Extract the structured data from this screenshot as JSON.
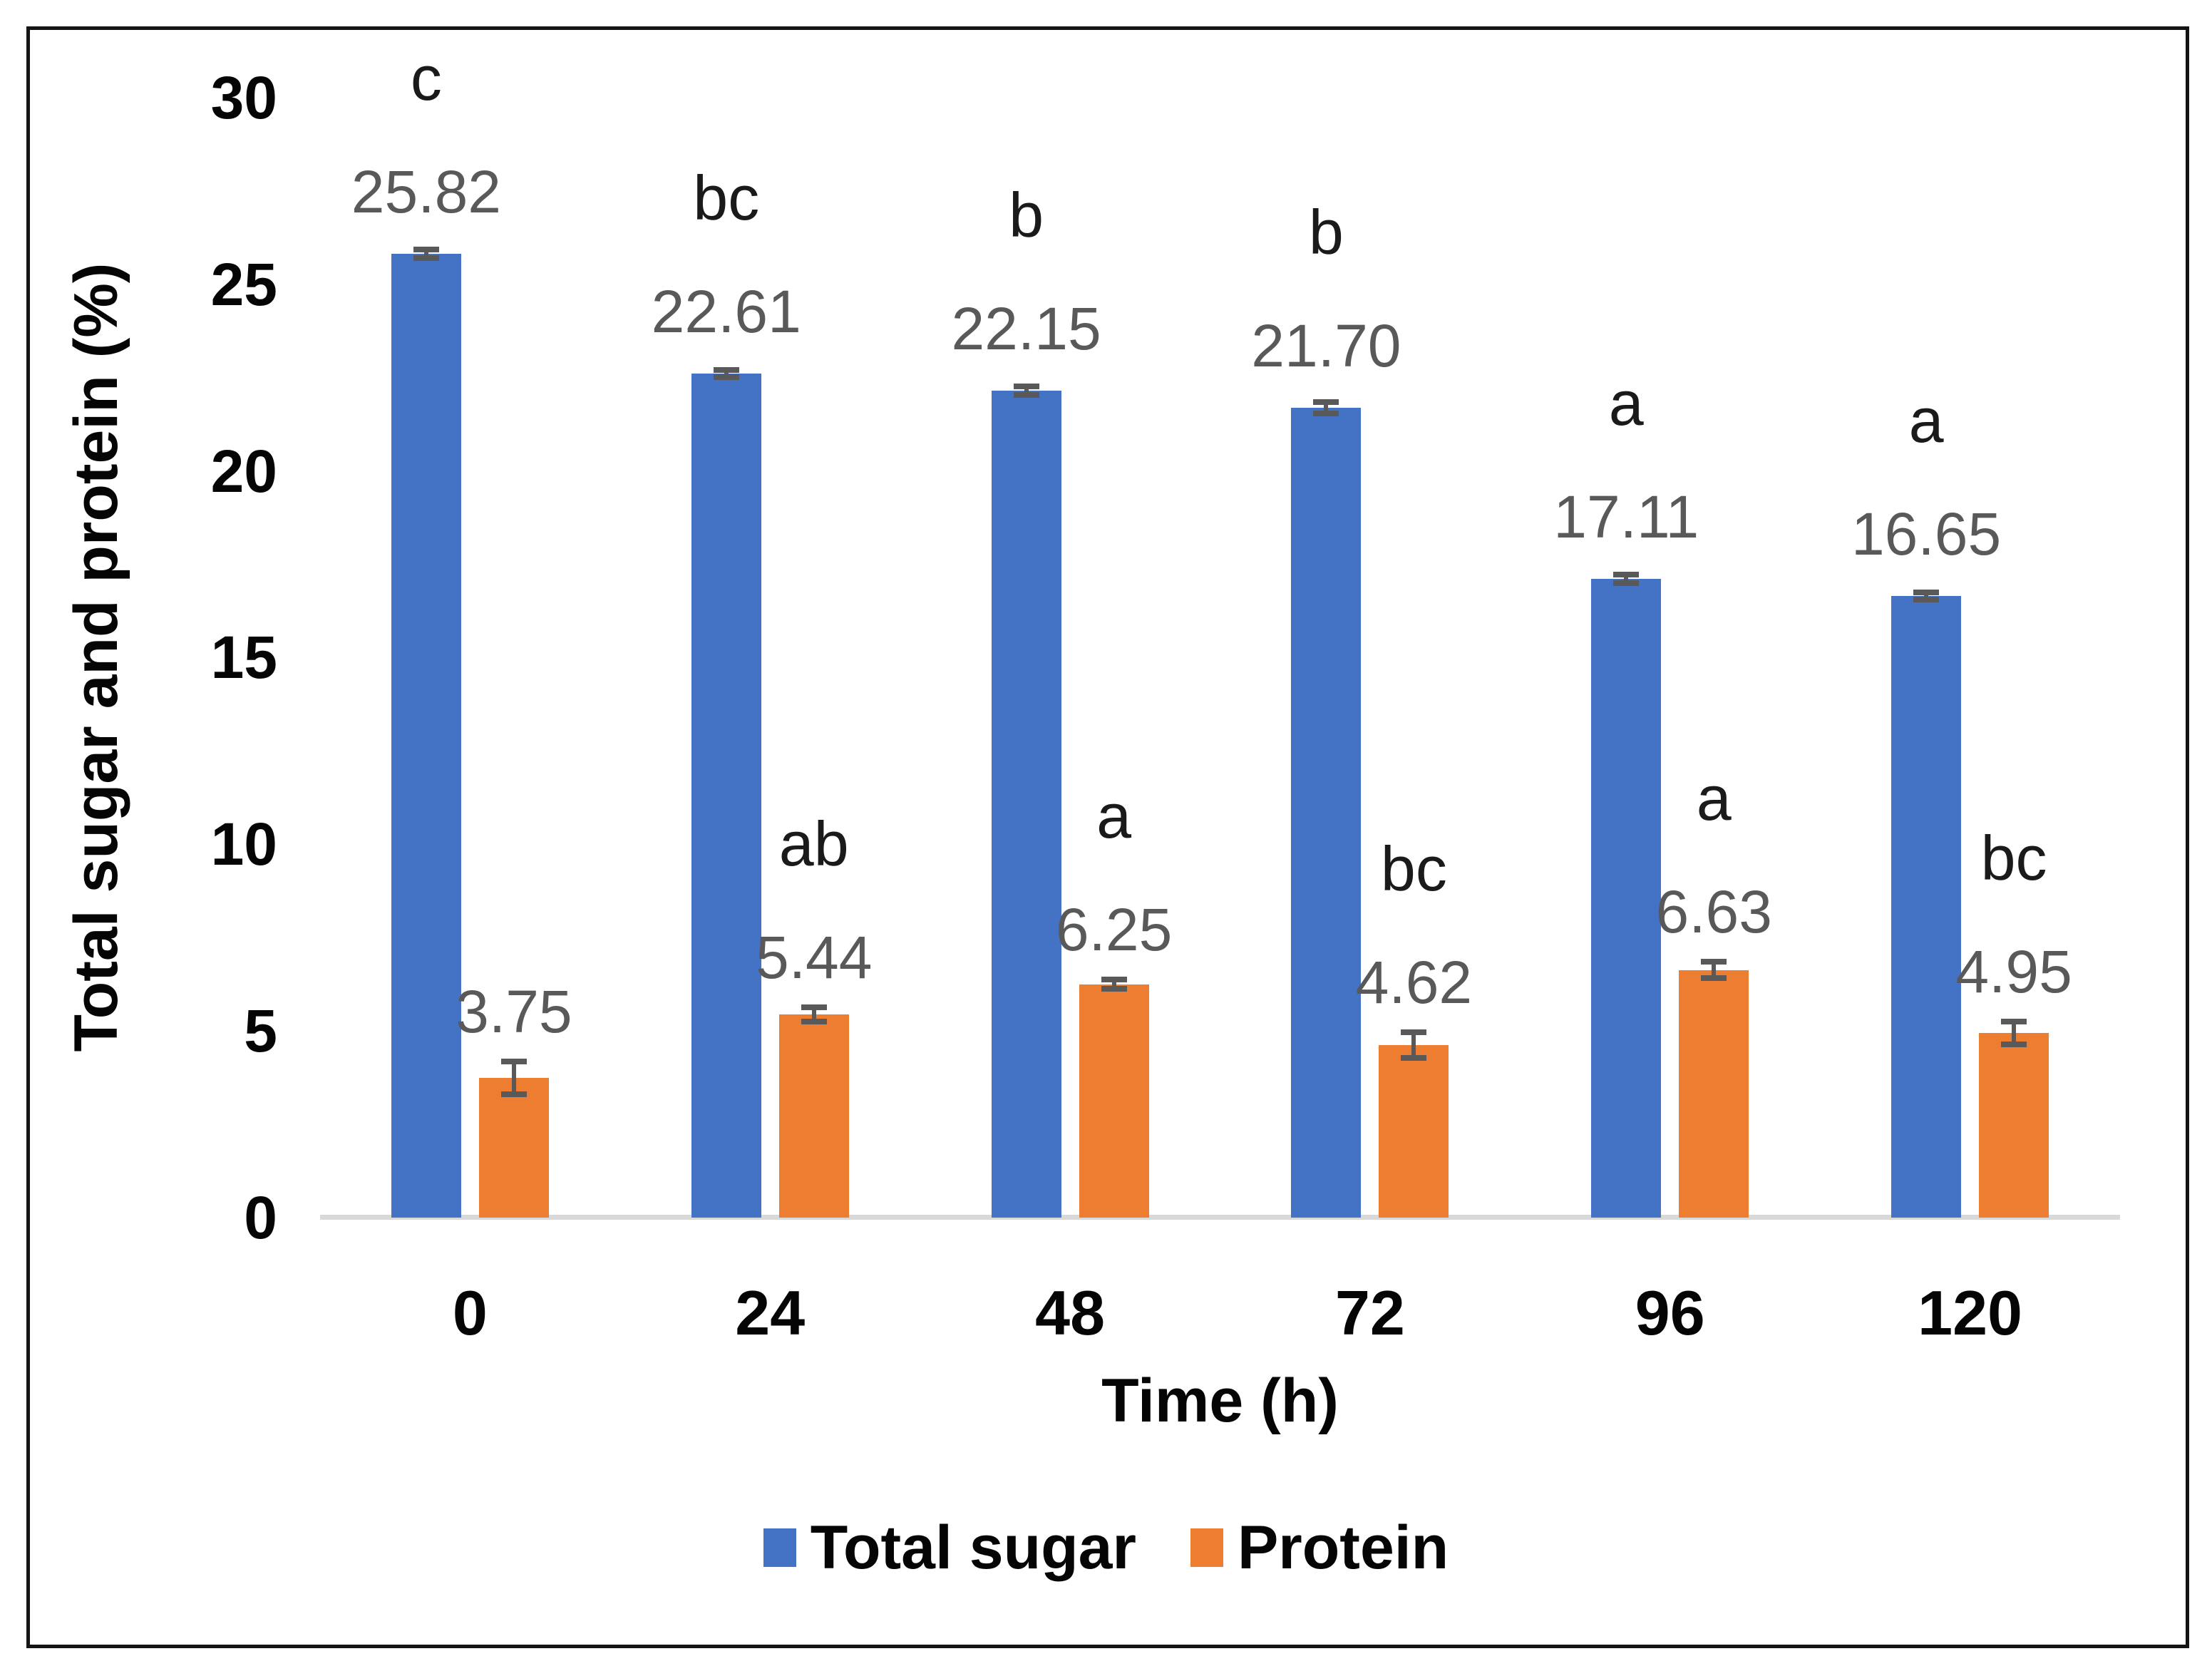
{
  "figure": {
    "background": "#ffffff",
    "frame_border_color": "#141414"
  },
  "chart_data": {
    "type": "bar",
    "title": "",
    "categories": [
      "0",
      "24",
      "48",
      "72",
      "96",
      "120"
    ],
    "xlabel": "Time (h)",
    "ylabel": "Total sugar and protein (%)",
    "y_axis": {
      "min": 0,
      "max": 30,
      "tick_step": 5,
      "ticks": [
        "0",
        "5",
        "10",
        "15",
        "20",
        "25",
        "30"
      ]
    },
    "grid": "off",
    "legend_position": "bottom",
    "axis_line_color": "#d9d9d9",
    "error_bar_color": "#595959",
    "value_label_color": "#595959",
    "sig_letter_color": "#1a1a1a",
    "series": [
      {
        "name": "Total sugar",
        "color": "#4472C4",
        "values": [
          25.82,
          22.61,
          22.15,
          21.7,
          17.11,
          16.65
        ],
        "value_labels": [
          "25.82",
          "22.61",
          "22.15",
          "21.70",
          "17.11",
          "16.65"
        ],
        "error_bars": [
          0.12,
          0.1,
          0.12,
          0.15,
          0.12,
          0.1
        ],
        "sig_letters": [
          "c",
          "bc",
          "b",
          "b",
          "a",
          "a"
        ]
      },
      {
        "name": "Protein",
        "color": "#ED7D31",
        "values": [
          3.75,
          5.44,
          6.25,
          4.62,
          6.63,
          4.95
        ],
        "value_labels": [
          "3.75",
          "5.44",
          "6.25",
          "4.62",
          "6.63",
          "4.95"
        ],
        "error_bars": [
          0.44,
          0.19,
          0.12,
          0.35,
          0.22,
          0.3
        ],
        "sig_letters": [
          "",
          "ab",
          "a",
          "bc",
          "a",
          "bc"
        ]
      }
    ]
  }
}
